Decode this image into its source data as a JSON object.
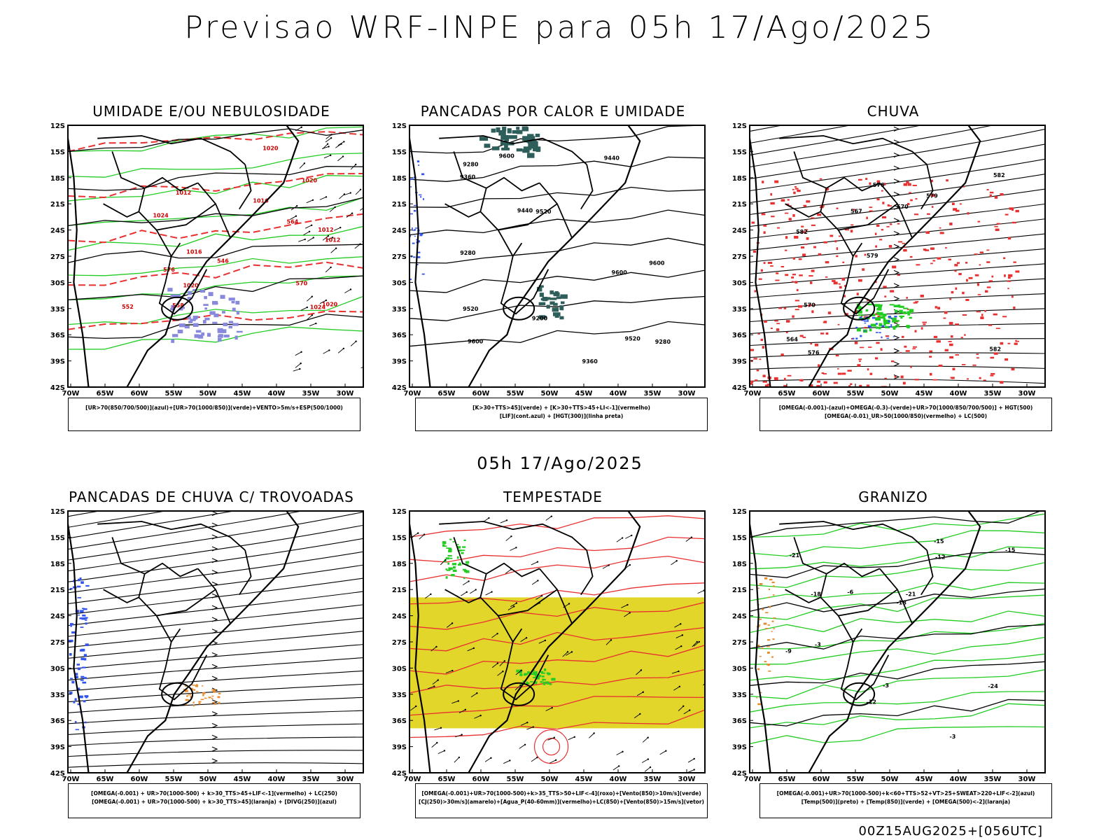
{
  "header": {
    "title": "Previsao WRF-INPE  para 05h 17/Ago/2025",
    "mid_title": "05h 17/Ago/2025",
    "footer": "00Z15AUG2025+[056UTC]"
  },
  "axes": {
    "lat_labels": [
      "12S",
      "15S",
      "18S",
      "21S",
      "24S",
      "27S",
      "30S",
      "33S",
      "36S",
      "39S",
      "42S"
    ],
    "lon_labels": [
      "70W",
      "65W",
      "60W",
      "55W",
      "50W",
      "45W",
      "40W",
      "35W",
      "30W"
    ]
  },
  "panels": [
    {
      "title": "UMIDADE E/OU NEBULOSIDADE",
      "legend": [
        "[UR>70(850/700/500)](azul)+[UR>70(1000/850)](verde)+VENTO>5m/s+ESP(500/1000)"
      ],
      "labels": [
        "1012",
        "1012",
        "1016",
        "1012",
        "1016",
        "1020",
        "1020",
        "1020",
        "1024",
        "1020",
        "1024",
        "570",
        "564",
        "558",
        "552",
        "546",
        "576"
      ]
    },
    {
      "title": "PANCADAS POR CALOR E UMIDADE",
      "legend": [
        "[K>30+TTS>45](verde) + [K>30+TTS>45+LI<-1](vermelho)",
        "[LIF](cont.azul) + [HGT(300)](linha preta)"
      ],
      "labels": [
        "9600",
        "9600",
        "9600",
        "9600",
        "9520",
        "9520",
        "9520",
        "9440",
        "9440",
        "9360",
        "9360",
        "9280",
        "9280",
        "9280",
        "9200"
      ]
    },
    {
      "title": "CHUVA",
      "legend": [
        "[OMEGA(-0.001)-(azul)+OMEGA(-0.3)-(verde)+UR>70(1000/850/700/500)] + HGT(500)",
        "[OMEGA(-0.01)_UR>50(1000/850)(vermelho) + LC(500)"
      ],
      "labels": [
        "582",
        "582",
        "582",
        "579",
        "579",
        "576",
        "576",
        "570",
        "570",
        "567",
        "564"
      ]
    },
    {
      "title": "PANCADAS DE CHUVA C/ TROVOADAS",
      "legend": [
        "[OMEGA(-0.001) + UR>70(1000-500) + k>30_TTS>45+LIF<-1](vermelho) + LC(250)",
        "[OMEGA(-0.001) + UR>70(1000-500) + k>30_TTS>45](laranja) + [DIVG(250)](azul)"
      ],
      "labels": []
    },
    {
      "title": "TEMPESTADE",
      "legend": [
        "[OMEGA(-0.001)+UR>70(1000-500)+k>35_TTS>50+LIF<-4](roxo)+[Vento(850)>10m/s](verde)",
        "[CJ(250)>30m/s](amarelo)+[Agua_P(40-60mm)](vermelho)+LC(850)+[Vento(850)>15m/s](vetor)"
      ],
      "labels": []
    },
    {
      "title": "GRANIZO",
      "legend": [
        "[OMEGA(-0.001)+UR>70(1000-500)+k<60+TTS>52+VT>25+SWEAT>220+LIF<-2](azul)",
        "[Temp(500)](preto) + [Temp(850)](verde) + [OMEGA(500)<-2](laranja)"
      ],
      "labels": [
        "-6",
        "-9",
        "-12",
        "-12",
        "-15",
        "-15",
        "-18",
        "-18",
        "-21",
        "-21",
        "-24",
        "-3",
        "-3",
        "-3"
      ]
    }
  ],
  "colors": {
    "red": "#e83030",
    "green": "#22cc22",
    "blue": "#3355ee",
    "teal": "#2e5e5a",
    "yellow": "#e2d62a",
    "orange": "#e88a2a",
    "purple": "#8888dd"
  }
}
